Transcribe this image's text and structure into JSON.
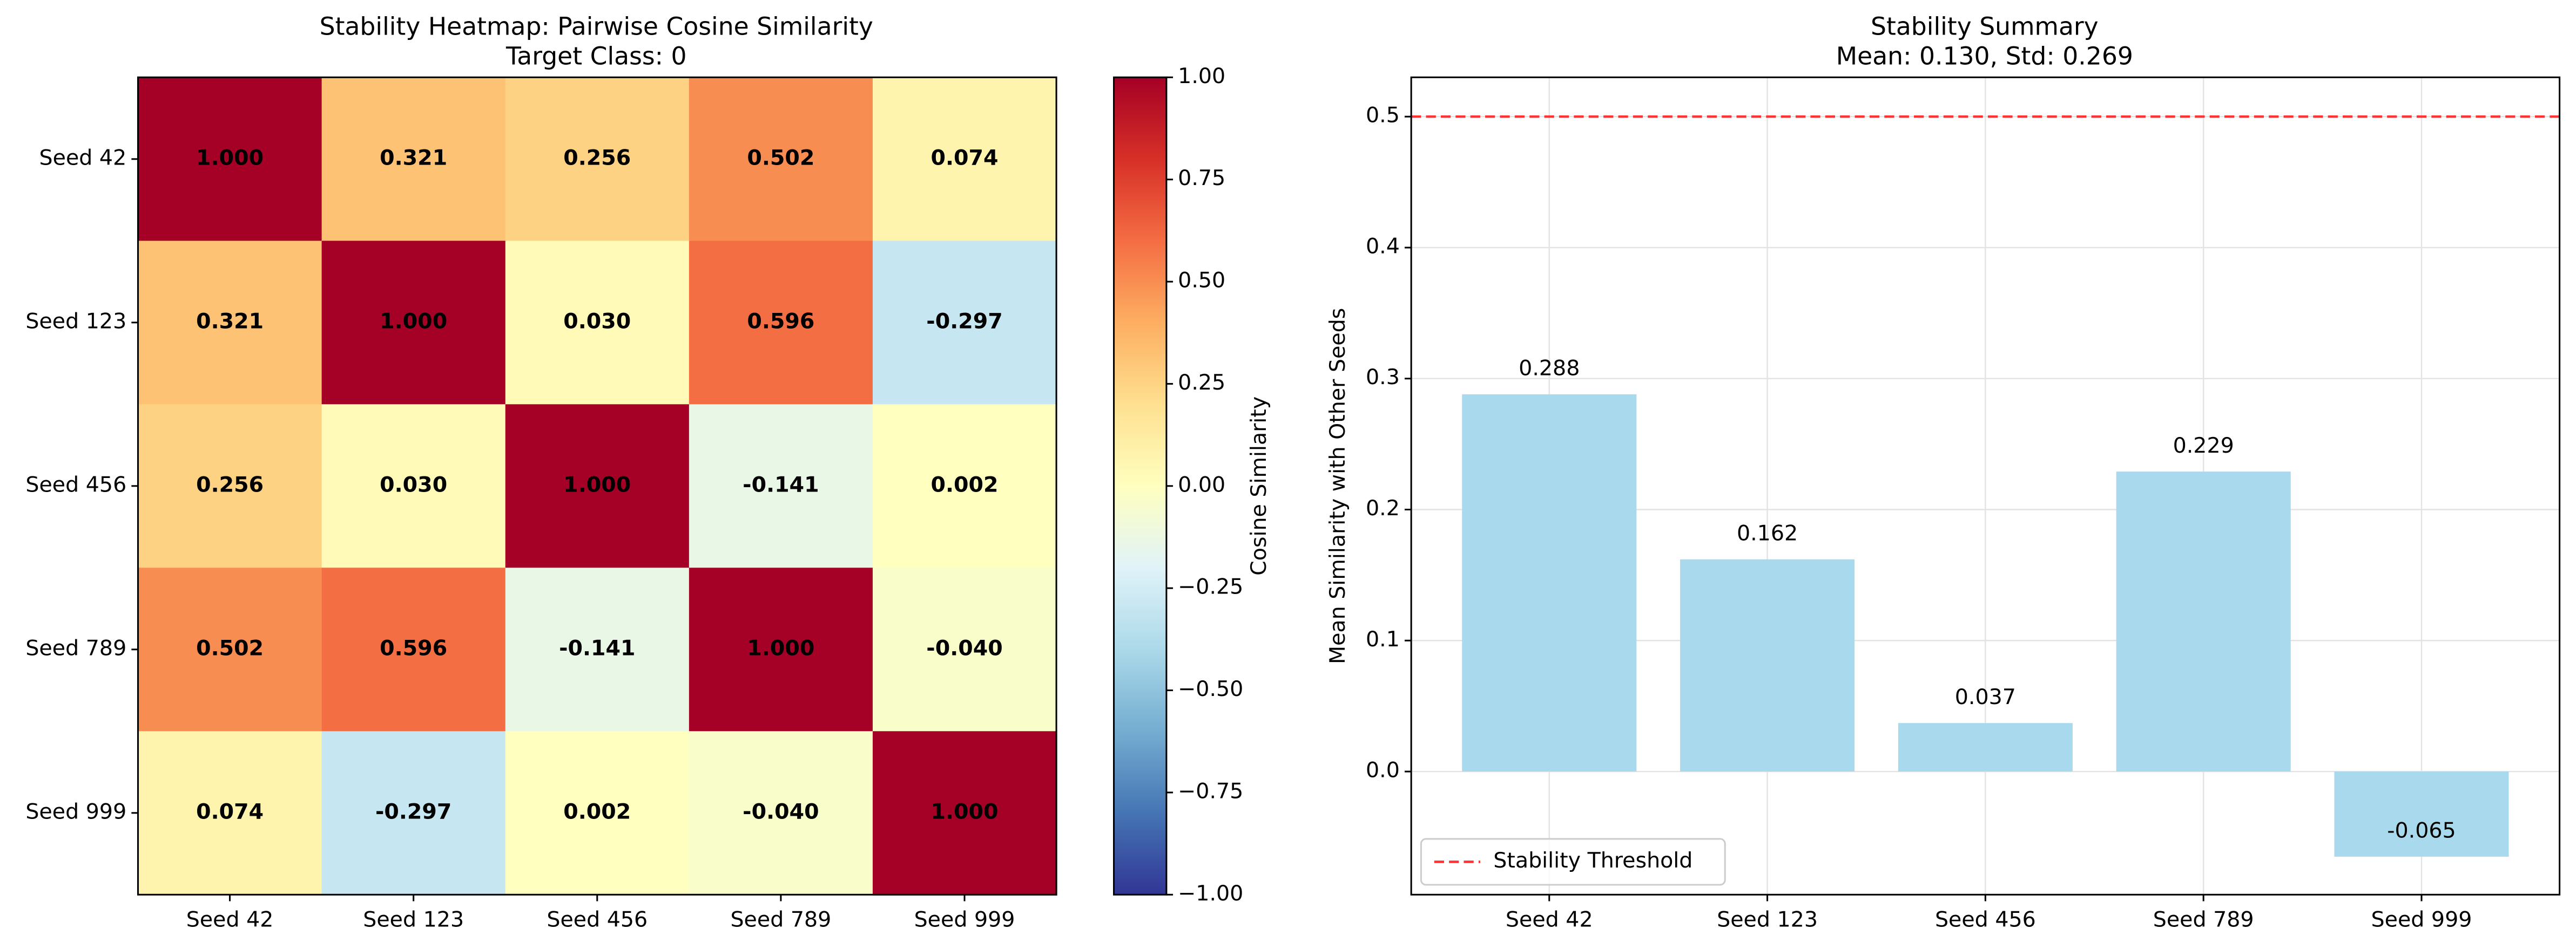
{
  "chart_data": [
    {
      "type": "heatmap",
      "title": "Stability Heatmap: Pairwise Cosine Similarity",
      "subtitle": "Target Class: 0",
      "x_categories": [
        "Seed 42",
        "Seed 123",
        "Seed 456",
        "Seed 789",
        "Seed 999"
      ],
      "y_categories": [
        "Seed 42",
        "Seed 123",
        "Seed 456",
        "Seed 789",
        "Seed 999"
      ],
      "values": [
        [
          1.0,
          0.321,
          0.256,
          0.502,
          0.074
        ],
        [
          0.321,
          1.0,
          0.03,
          0.596,
          -0.297
        ],
        [
          0.256,
          0.03,
          1.0,
          -0.141,
          0.002
        ],
        [
          0.502,
          0.596,
          -0.141,
          1.0,
          -0.04
        ],
        [
          0.074,
          -0.297,
          0.002,
          -0.04,
          1.0
        ]
      ],
      "value_labels": [
        [
          "1.000",
          "0.321",
          "0.256",
          "0.502",
          "0.074"
        ],
        [
          "0.321",
          "1.000",
          "0.030",
          "0.596",
          "-0.297"
        ],
        [
          "0.256",
          "0.030",
          "1.000",
          "-0.141",
          "0.002"
        ],
        [
          "0.502",
          "0.596",
          "-0.141",
          "1.000",
          "-0.040"
        ],
        [
          "0.074",
          "-0.297",
          "0.002",
          "-0.040",
          "1.000"
        ]
      ],
      "colormap": "RdYlBu_r",
      "colorbar_label": "Cosine Similarity",
      "zlim": [
        -1,
        1
      ],
      "zticks": [
        {
          "value": -1,
          "label": "−1.00"
        },
        {
          "value": -0.75,
          "label": "−0.75"
        },
        {
          "value": -0.5,
          "label": "−0.50"
        },
        {
          "value": -0.25,
          "label": "−0.25"
        },
        {
          "value": 0,
          "label": "0.00"
        },
        {
          "value": 0.25,
          "label": "0.25"
        },
        {
          "value": 0.5,
          "label": "0.50"
        },
        {
          "value": 0.75,
          "label": "0.75"
        },
        {
          "value": 1,
          "label": "1.00"
        }
      ]
    },
    {
      "type": "bar",
      "title": "Stability Summary",
      "subtitle": "Mean: 0.130, Std: 0.269",
      "y_label": "Mean Similarity with Other Seeds",
      "categories": [
        "Seed 42",
        "Seed 123",
        "Seed 456",
        "Seed 789",
        "Seed 999"
      ],
      "values": [
        0.288,
        0.162,
        0.037,
        0.229,
        -0.065
      ],
      "color": "#a8d9ed",
      "ylim": [
        -0.094,
        0.53
      ],
      "yticks": [
        {
          "value": 0,
          "label": "0.0"
        },
        0.1,
        0.2,
        0.3,
        0.4,
        0.5
      ],
      "grid": true,
      "threshold": {
        "name": "Stability Threshold",
        "value": 0.5,
        "color": "#ff3333"
      },
      "legend": "lower left"
    }
  ]
}
